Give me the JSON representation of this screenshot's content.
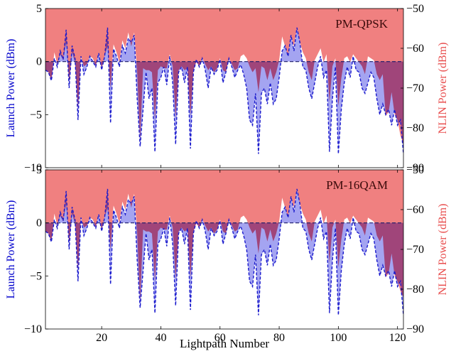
{
  "chart_data": [
    {
      "type": "area",
      "label": "PM-QPSK",
      "xlabel": "Lightpath Number",
      "ylabel_left": "Launch Power (dBm)",
      "ylabel_right": "NLIN Power (dBm)",
      "xlim": [
        1,
        122
      ],
      "ylim_left": [
        -10,
        5
      ],
      "ylim_right": [
        -90,
        -50
      ],
      "xticks": [
        20,
        40,
        60,
        80,
        100,
        120
      ],
      "yticks_left": [
        -10,
        -5,
        0,
        5
      ],
      "yticks_right": [
        -90,
        -80,
        -70,
        -60,
        -50
      ],
      "grid": false,
      "colors": {
        "launch_fill": "#9a9af0",
        "launch_line": "#1a1acc",
        "nlin_fill": "#f08080",
        "overlap": "#a0457a",
        "axis_left": "#0000cc",
        "axis_right": "#e84c4c"
      },
      "series": [
        {
          "name": "Launch Power (dBm)",
          "axis": "left",
          "x": [
            1,
            2,
            3,
            4,
            5,
            6,
            7,
            8,
            9,
            10,
            11,
            12,
            13,
            14,
            15,
            16,
            17,
            18,
            19,
            20,
            21,
            22,
            23,
            24,
            25,
            26,
            27,
            28,
            29,
            30,
            31,
            32,
            33,
            34,
            35,
            36,
            37,
            38,
            39,
            40,
            41,
            42,
            43,
            44,
            45,
            46,
            47,
            48,
            49,
            50,
            51,
            52,
            53,
            54,
            55,
            56,
            57,
            58,
            59,
            60,
            61,
            62,
            63,
            64,
            65,
            66,
            67,
            68,
            69,
            70,
            71,
            72,
            73,
            74,
            75,
            76,
            77,
            78,
            79,
            80,
            81,
            82,
            83,
            84,
            85,
            86,
            87,
            88,
            89,
            90,
            91,
            92,
            93,
            94,
            95,
            96,
            97,
            98,
            99,
            100,
            101,
            102,
            103,
            104,
            105,
            106,
            107,
            108,
            109,
            110,
            111,
            112,
            113,
            114,
            115,
            116,
            117,
            118,
            119,
            120,
            121,
            122
          ],
          "y": [
            -0.8,
            -1.0,
            -1.8,
            0.3,
            -0.5,
            1.0,
            0.2,
            3.0,
            -2.5,
            1.5,
            0.3,
            -5.5,
            0.5,
            -1.2,
            -0.5,
            0.5,
            0.0,
            -0.5,
            0.8,
            -0.8,
            0.5,
            3.2,
            -5.8,
            1.2,
            0.5,
            -0.5,
            1.5,
            0.8,
            2.2,
            1.8,
            2.5,
            -3.5,
            -8.0,
            -4.5,
            -1.0,
            -3.5,
            -2.5,
            -8.5,
            -2.0,
            -1.5,
            -0.5,
            -2.2,
            0.5,
            -2.0,
            -7.8,
            -1.0,
            -0.5,
            -2.0,
            -0.5,
            -8.2,
            -1.0,
            0.2,
            -0.5,
            0.3,
            -0.8,
            -2.5,
            -0.5,
            -1.2,
            -0.8,
            0.2,
            -2.0,
            -1.0,
            0.3,
            -0.5,
            -1.5,
            -0.8,
            -0.3,
            -1.2,
            -2.5,
            -5.5,
            -6.0,
            -3.0,
            -8.7,
            -3.0,
            -2.5,
            -4.0,
            -2.0,
            -4.0,
            -3.5,
            -1.5,
            1.0,
            1.5,
            0.5,
            2.5,
            1.0,
            3.2,
            1.8,
            -0.5,
            -0.8,
            -2.5,
            -3.5,
            -2.0,
            -0.5,
            0.5,
            -1.5,
            -0.8,
            -8.5,
            -3.5,
            -0.5,
            -8.7,
            -4.5,
            -2.0,
            -0.5,
            -1.5,
            0.5,
            -0.8,
            -1.0,
            -2.5,
            -3.0,
            -2.0,
            -1.0,
            -1.5,
            -3.5,
            -5.0,
            -4.0,
            -5.0,
            -4.5,
            -6.0,
            -4.5,
            -6.0,
            -5.5,
            -8.7
          ]
        },
        {
          "name": "NLIN Power (dBm)",
          "axis": "right",
          "x": [
            1,
            2,
            3,
            4,
            5,
            6,
            7,
            8,
            9,
            10,
            11,
            12,
            13,
            14,
            15,
            16,
            17,
            18,
            19,
            20,
            21,
            22,
            23,
            24,
            25,
            26,
            27,
            28,
            29,
            30,
            31,
            32,
            33,
            34,
            35,
            36,
            37,
            38,
            39,
            40,
            41,
            42,
            43,
            44,
            45,
            46,
            47,
            48,
            49,
            50,
            51,
            52,
            53,
            54,
            55,
            56,
            57,
            58,
            59,
            60,
            61,
            62,
            63,
            64,
            65,
            66,
            67,
            68,
            69,
            70,
            71,
            72,
            73,
            74,
            75,
            76,
            77,
            78,
            79,
            80,
            81,
            82,
            83,
            84,
            85,
            86,
            87,
            88,
            89,
            90,
            91,
            92,
            93,
            94,
            95,
            96,
            97,
            98,
            99,
            100,
            101,
            102,
            103,
            104,
            105,
            106,
            107,
            108,
            109,
            110,
            111,
            112,
            113,
            114,
            115,
            116,
            117,
            118,
            119,
            120,
            121,
            122
          ],
          "y": [
            -65.5,
            -66.0,
            -68.0,
            -61.0,
            -64.0,
            -61.5,
            -63.0,
            -58.5,
            -68.5,
            -61.0,
            -63.5,
            -75.0,
            -62.0,
            -64.5,
            -64.0,
            -62.0,
            -62.5,
            -64.5,
            -61.0,
            -65.0,
            -62.0,
            -59.5,
            -70.0,
            -59.0,
            -61.0,
            -63.5,
            -58.0,
            -60.0,
            -56.0,
            -59.5,
            -56.0,
            -66.0,
            -83.0,
            -65.0,
            -65.5,
            -65.5,
            -66.0,
            -78.0,
            -65.5,
            -64.5,
            -65.0,
            -65.0,
            -61.5,
            -64.5,
            -77.5,
            -65.5,
            -64.5,
            -65.5,
            -65.0,
            -77.0,
            -65.5,
            -63.5,
            -64.5,
            -62.5,
            -64.0,
            -65.5,
            -64.5,
            -66.0,
            -65.0,
            -62.5,
            -65.5,
            -66.0,
            -62.5,
            -64.0,
            -65.5,
            -65.0,
            -62.0,
            -61.5,
            -62.5,
            -64.5,
            -66.0,
            -65.0,
            -71.0,
            -64.5,
            -65.0,
            -68.0,
            -65.0,
            -68.0,
            -66.0,
            -63.0,
            -57.0,
            -59.5,
            -62.0,
            -57.0,
            -59.5,
            -55.0,
            -58.5,
            -61.0,
            -62.5,
            -66.0,
            -68.0,
            -63.0,
            -61.5,
            -60.0,
            -63.5,
            -61.5,
            -73.5,
            -64.5,
            -62.5,
            -74.5,
            -67.5,
            -62.5,
            -62.0,
            -63.5,
            -61.5,
            -62.5,
            -63.5,
            -64.5,
            -66.5,
            -62.0,
            -62.5,
            -63.0,
            -66.5,
            -68.0,
            -66.5,
            -77.0,
            -76.0,
            -71.0,
            -76.5,
            -78.0,
            -82.0,
            -84.0
          ]
        }
      ]
    },
    {
      "type": "area",
      "label": "PM-16QAM",
      "xlabel": "Lightpath Number",
      "ylabel_left": "Launch Power (dBm)",
      "ylabel_right": "NLIN Power (dBm)",
      "xlim": [
        1,
        122
      ],
      "ylim_left": [
        -10,
        5
      ],
      "ylim_right": [
        -90,
        -50
      ],
      "xticks": [
        20,
        40,
        60,
        80,
        100,
        120
      ],
      "yticks_left": [
        -10,
        -5,
        0,
        5
      ],
      "yticks_right": [
        -90,
        -80,
        -70,
        -60,
        -50
      ],
      "grid": false,
      "colors": {
        "launch_fill": "#9a9af0",
        "launch_line": "#1a1acc",
        "nlin_fill": "#f08080",
        "overlap": "#a0457a",
        "axis_left": "#0000cc",
        "axis_right": "#e84c4c"
      },
      "series": [
        {
          "name": "Launch Power (dBm)",
          "axis": "left",
          "x": [
            1,
            2,
            3,
            4,
            5,
            6,
            7,
            8,
            9,
            10,
            11,
            12,
            13,
            14,
            15,
            16,
            17,
            18,
            19,
            20,
            21,
            22,
            23,
            24,
            25,
            26,
            27,
            28,
            29,
            30,
            31,
            32,
            33,
            34,
            35,
            36,
            37,
            38,
            39,
            40,
            41,
            42,
            43,
            44,
            45,
            46,
            47,
            48,
            49,
            50,
            51,
            52,
            53,
            54,
            55,
            56,
            57,
            58,
            59,
            60,
            61,
            62,
            63,
            64,
            65,
            66,
            67,
            68,
            69,
            70,
            71,
            72,
            73,
            74,
            75,
            76,
            77,
            78,
            79,
            80,
            81,
            82,
            83,
            84,
            85,
            86,
            87,
            88,
            89,
            90,
            91,
            92,
            93,
            94,
            95,
            96,
            97,
            98,
            99,
            100,
            101,
            102,
            103,
            104,
            105,
            106,
            107,
            108,
            109,
            110,
            111,
            112,
            113,
            114,
            115,
            116,
            117,
            118,
            119,
            120,
            121,
            122
          ],
          "y": [
            -0.8,
            -1.0,
            -1.8,
            0.3,
            -0.5,
            1.0,
            0.2,
            3.0,
            -2.5,
            1.5,
            0.3,
            -5.5,
            0.5,
            -1.2,
            -0.5,
            0.5,
            0.0,
            -0.5,
            0.8,
            -0.8,
            0.5,
            3.2,
            -5.8,
            1.2,
            0.5,
            -0.5,
            1.5,
            0.8,
            2.2,
            1.8,
            2.5,
            -3.5,
            -8.0,
            -4.5,
            -1.0,
            -3.5,
            -2.5,
            -8.5,
            -2.0,
            -1.5,
            -0.5,
            -2.2,
            0.5,
            -2.0,
            -7.8,
            -1.0,
            -0.5,
            -2.0,
            -0.5,
            -8.2,
            -1.0,
            0.2,
            -0.5,
            0.3,
            -0.8,
            -2.5,
            -0.5,
            -1.2,
            -0.8,
            0.2,
            -2.0,
            -1.0,
            0.3,
            -0.5,
            -1.5,
            -0.8,
            -0.3,
            -1.2,
            -2.5,
            -5.5,
            -6.0,
            -3.0,
            -8.7,
            -3.0,
            -2.5,
            -4.0,
            -2.0,
            -4.0,
            -3.5,
            -1.5,
            1.0,
            1.5,
            0.5,
            2.5,
            1.0,
            3.2,
            1.8,
            -0.5,
            -0.8,
            -2.5,
            -3.5,
            -2.0,
            -0.5,
            0.5,
            -1.5,
            -0.8,
            -8.5,
            -3.5,
            -0.5,
            -8.7,
            -4.5,
            -2.0,
            -0.5,
            -1.5,
            0.5,
            -0.8,
            -1.0,
            -2.5,
            -3.0,
            -2.0,
            -1.0,
            -1.5,
            -3.5,
            -5.0,
            -4.0,
            -5.0,
            -4.5,
            -6.0,
            -4.5,
            -6.0,
            -5.5,
            -8.7
          ]
        },
        {
          "name": "NLIN Power (dBm)",
          "axis": "right",
          "x": [
            1,
            2,
            3,
            4,
            5,
            6,
            7,
            8,
            9,
            10,
            11,
            12,
            13,
            14,
            15,
            16,
            17,
            18,
            19,
            20,
            21,
            22,
            23,
            24,
            25,
            26,
            27,
            28,
            29,
            30,
            31,
            32,
            33,
            34,
            35,
            36,
            37,
            38,
            39,
            40,
            41,
            42,
            43,
            44,
            45,
            46,
            47,
            48,
            49,
            50,
            51,
            52,
            53,
            54,
            55,
            56,
            57,
            58,
            59,
            60,
            61,
            62,
            63,
            64,
            65,
            66,
            67,
            68,
            69,
            70,
            71,
            72,
            73,
            74,
            75,
            76,
            77,
            78,
            79,
            80,
            81,
            82,
            83,
            84,
            85,
            86,
            87,
            88,
            89,
            90,
            91,
            92,
            93,
            94,
            95,
            96,
            97,
            98,
            99,
            100,
            101,
            102,
            103,
            104,
            105,
            106,
            107,
            108,
            109,
            110,
            111,
            112,
            113,
            114,
            115,
            116,
            117,
            118,
            119,
            120,
            121,
            122
          ],
          "y": [
            -65.5,
            -66.0,
            -68.0,
            -61.0,
            -64.0,
            -61.5,
            -63.0,
            -58.5,
            -68.5,
            -61.0,
            -63.5,
            -75.0,
            -62.0,
            -64.5,
            -64.0,
            -62.0,
            -62.5,
            -64.5,
            -61.0,
            -65.0,
            -62.0,
            -59.5,
            -70.0,
            -59.0,
            -61.0,
            -63.5,
            -58.0,
            -60.0,
            -56.0,
            -59.5,
            -56.0,
            -66.0,
            -83.0,
            -65.0,
            -65.5,
            -65.5,
            -66.0,
            -78.0,
            -65.5,
            -64.5,
            -65.0,
            -65.0,
            -61.5,
            -64.5,
            -77.5,
            -65.5,
            -64.5,
            -65.5,
            -65.0,
            -77.0,
            -65.5,
            -63.5,
            -64.5,
            -62.5,
            -64.0,
            -65.5,
            -64.5,
            -66.0,
            -65.0,
            -62.5,
            -65.5,
            -66.0,
            -62.5,
            -64.0,
            -65.5,
            -65.0,
            -62.0,
            -61.5,
            -62.5,
            -64.5,
            -66.0,
            -65.0,
            -71.0,
            -64.5,
            -65.0,
            -68.0,
            -65.0,
            -68.0,
            -66.0,
            -63.0,
            -57.0,
            -59.5,
            -62.0,
            -57.0,
            -59.5,
            -55.0,
            -58.5,
            -61.0,
            -62.5,
            -66.0,
            -68.0,
            -63.0,
            -61.5,
            -60.0,
            -63.5,
            -61.5,
            -73.5,
            -64.5,
            -62.5,
            -74.5,
            -67.5,
            -62.5,
            -62.0,
            -63.5,
            -61.5,
            -62.5,
            -63.5,
            -64.5,
            -66.5,
            -62.0,
            -62.5,
            -63.0,
            -66.5,
            -68.0,
            -66.5,
            -77.0,
            -76.0,
            -71.0,
            -76.5,
            -78.0,
            -80.5,
            -82.0
          ]
        }
      ]
    }
  ]
}
